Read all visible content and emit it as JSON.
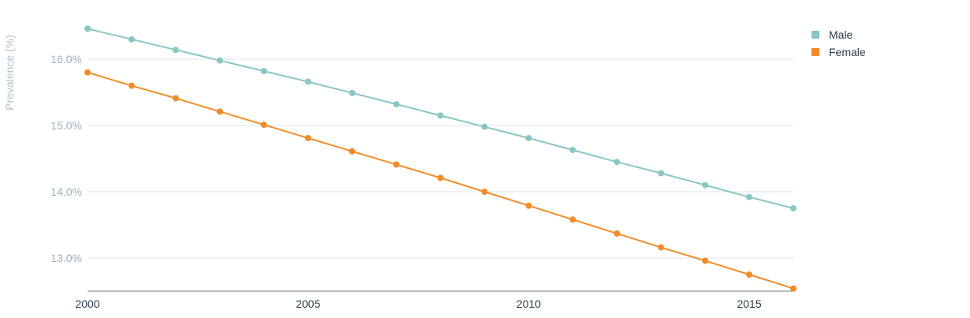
{
  "chart_data": {
    "type": "line",
    "title": "",
    "xlabel": "",
    "ylabel": "Prevalence (%)",
    "x": [
      2000,
      2001,
      2002,
      2003,
      2004,
      2005,
      2006,
      2007,
      2008,
      2009,
      2010,
      2011,
      2012,
      2013,
      2014,
      2015,
      2016
    ],
    "xticks": [
      2000,
      2005,
      2010,
      2015
    ],
    "yticks": [
      13.0,
      14.0,
      15.0,
      16.0
    ],
    "ytick_labels": [
      "13.0%",
      "14.0%",
      "15.0%",
      "16.0%"
    ],
    "xlim": [
      2000,
      2016
    ],
    "ylim": [
      12.5,
      16.5
    ],
    "grid": "horizontal",
    "legend_position": "top-right",
    "series": [
      {
        "name": "Male",
        "color": "#8ac6c5",
        "values": [
          16.46,
          16.3,
          16.14,
          15.98,
          15.82,
          15.66,
          15.49,
          15.32,
          15.15,
          14.98,
          14.81,
          14.63,
          14.45,
          14.28,
          14.1,
          13.92,
          13.75
        ]
      },
      {
        "name": "Female",
        "color": "#f28c2b",
        "values": [
          15.8,
          15.6,
          15.41,
          15.21,
          15.01,
          14.81,
          14.61,
          14.41,
          14.21,
          14.0,
          13.79,
          13.58,
          13.37,
          13.16,
          12.96,
          12.75,
          12.54
        ]
      }
    ]
  }
}
